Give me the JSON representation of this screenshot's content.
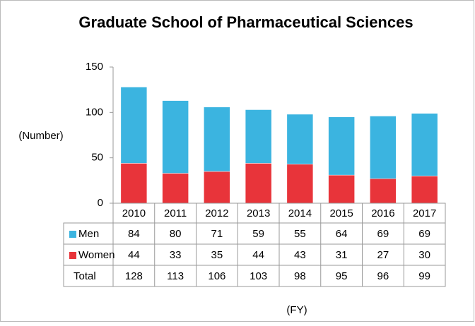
{
  "chart_data": {
    "type": "stacked_bar",
    "title": "Graduate School of Pharmaceutical Sciences",
    "y_label": "(Number)",
    "x_label": "(FY)",
    "categories": [
      "2010",
      "2011",
      "2012",
      "2013",
      "2014",
      "2015",
      "2016",
      "2017"
    ],
    "series": [
      {
        "name": "Women",
        "color": "#e8343a",
        "values": [
          44,
          33,
          35,
          44,
          43,
          31,
          27,
          30
        ]
      },
      {
        "name": "Men",
        "color": "#3bb4e0",
        "values": [
          84,
          80,
          71,
          59,
          55,
          64,
          69,
          69
        ]
      }
    ],
    "totals": {
      "name": "Total",
      "values": [
        128,
        113,
        106,
        103,
        98,
        95,
        96,
        99
      ]
    },
    "ylim": [
      0,
      150
    ],
    "yticks": [
      0,
      50,
      100,
      150
    ],
    "grid": false
  }
}
